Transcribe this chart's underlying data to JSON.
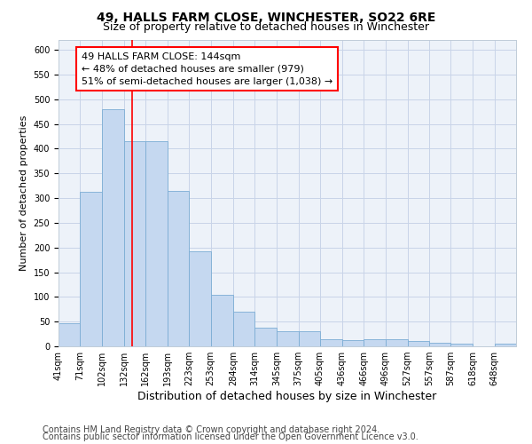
{
  "title": "49, HALLS FARM CLOSE, WINCHESTER, SO22 6RE",
  "subtitle": "Size of property relative to detached houses in Winchester",
  "xlabel": "Distribution of detached houses by size in Winchester",
  "ylabel": "Number of detached properties",
  "bar_color": "#c5d8f0",
  "bar_edge_color": "#7badd4",
  "bin_left_edges": [
    41,
    71,
    102,
    132,
    162,
    193,
    223,
    253,
    284,
    314,
    345,
    375,
    405,
    436,
    466,
    496,
    527,
    557,
    587,
    618,
    648
  ],
  "bin_widths": [
    30,
    31,
    30,
    30,
    31,
    30,
    30,
    31,
    30,
    31,
    30,
    30,
    31,
    30,
    30,
    31,
    30,
    30,
    31,
    30,
    30
  ],
  "bar_heights": [
    46,
    312,
    480,
    415,
    415,
    315,
    192,
    104,
    70,
    37,
    30,
    30,
    14,
    12,
    15,
    15,
    10,
    8,
    5,
    0,
    5
  ],
  "tick_labels": [
    "41sqm",
    "71sqm",
    "102sqm",
    "132sqm",
    "162sqm",
    "193sqm",
    "223sqm",
    "253sqm",
    "284sqm",
    "314sqm",
    "345sqm",
    "375sqm",
    "405sqm",
    "436sqm",
    "466sqm",
    "496sqm",
    "527sqm",
    "557sqm",
    "587sqm",
    "618sqm",
    "648sqm"
  ],
  "red_line_x": 144,
  "ann_line1": "49 HALLS FARM CLOSE: 144sqm",
  "ann_line2": "← 48% of detached houses are smaller (979)",
  "ann_line3": "51% of semi-detached houses are larger (1,038) →",
  "ylim": [
    0,
    620
  ],
  "yticks": [
    0,
    50,
    100,
    150,
    200,
    250,
    300,
    350,
    400,
    450,
    500,
    550,
    600
  ],
  "xlim_left": 41,
  "xlim_right": 678,
  "footer_line1": "Contains HM Land Registry data © Crown copyright and database right 2024.",
  "footer_line2": "Contains public sector information licensed under the Open Government Licence v3.0.",
  "bg_color": "#ffffff",
  "plot_bg_color": "#edf2f9",
  "grid_color": "#c8d4e8",
  "title_fontsize": 10,
  "subtitle_fontsize": 9,
  "xlabel_fontsize": 9,
  "ylabel_fontsize": 8,
  "tick_fontsize": 7,
  "ann_fontsize": 8,
  "footer_fontsize": 7
}
